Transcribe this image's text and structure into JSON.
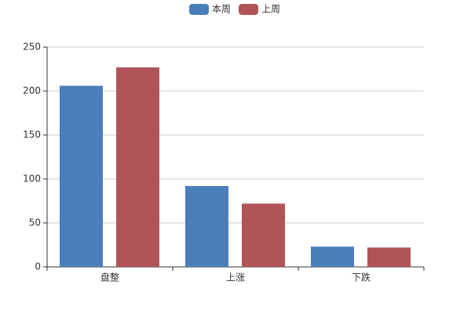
{
  "chart_data": {
    "type": "bar",
    "categories": [
      "盘整",
      "上涨",
      "下跌"
    ],
    "series": [
      {
        "name": "本周",
        "color": "#4a7ebb",
        "values": [
          206,
          92,
          23
        ]
      },
      {
        "name": "上周",
        "color": "#b05457",
        "values": [
          227,
          72,
          22
        ]
      }
    ],
    "ylim": [
      0,
      250
    ],
    "yticks": [
      0,
      50,
      100,
      150,
      200,
      250
    ],
    "grid": true,
    "legend": "top"
  }
}
